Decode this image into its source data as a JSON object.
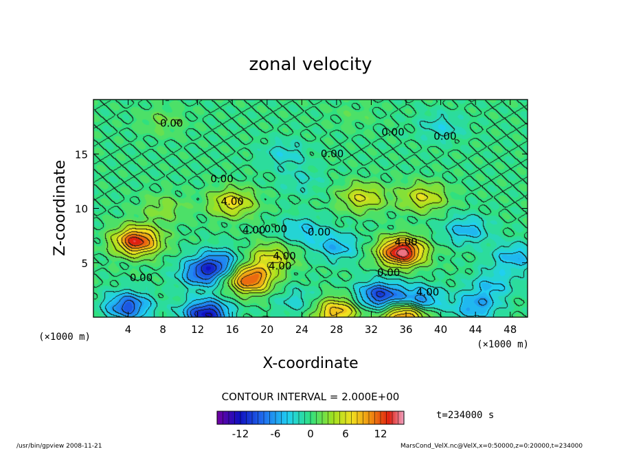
{
  "chart_data": {
    "type": "heatmap",
    "title": "zonal velocity",
    "xlabel": "X-coordinate",
    "ylabel": "Z-coordinate",
    "x_unit": "(×1000 m)",
    "y_unit": "(×1000 m)",
    "xlim": [
      0,
      50
    ],
    "ylim": [
      0,
      20
    ],
    "x_ticks": [
      4,
      8,
      12,
      16,
      20,
      24,
      28,
      32,
      36,
      40,
      44,
      48
    ],
    "y_ticks": [
      5,
      10,
      15
    ],
    "contour_interval": "CONTOUR INTERVAL = 2.000E+00",
    "time": "t=234000 s",
    "colorbar": {
      "range": [
        -16,
        16
      ],
      "ticks": [
        -12,
        -6,
        0,
        6,
        12
      ]
    },
    "contour_labels": [
      {
        "text": "0.00",
        "x": 9.0,
        "z": 17.5
      },
      {
        "text": "0.00",
        "x": 34.5,
        "z": 16.7
      },
      {
        "text": "0.00",
        "x": 40.5,
        "z": 16.3
      },
      {
        "text": "0.00",
        "x": 27.5,
        "z": 14.7
      },
      {
        "text": "0.00",
        "x": 14.8,
        "z": 12.4
      },
      {
        "text": "4.00",
        "x": 16.0,
        "z": 10.3
      },
      {
        "text": "4.00",
        "x": 18.5,
        "z": 7.7
      },
      {
        "text": "0.00",
        "x": 21.0,
        "z": 7.8
      },
      {
        "text": "0.00",
        "x": 26.0,
        "z": 7.5
      },
      {
        "text": "4.00",
        "x": 36.0,
        "z": 6.6
      },
      {
        "text": "4.00",
        "x": 22.0,
        "z": 5.3
      },
      {
        "text": "4.00",
        "x": 21.5,
        "z": 4.4
      },
      {
        "text": "0.00",
        "x": 5.5,
        "z": 3.3
      },
      {
        "text": "0.00",
        "x": 34.0,
        "z": 3.8
      },
      {
        "text": "4.00",
        "x": 38.5,
        "z": 2.0
      }
    ],
    "features": [
      {
        "x": 5.0,
        "z": 7.0,
        "u": 13
      },
      {
        "x": 35.5,
        "z": 6.0,
        "u": 15
      },
      {
        "x": 18.0,
        "z": 3.5,
        "u": 12
      },
      {
        "x": 20.5,
        "z": 5.5,
        "u": 6
      },
      {
        "x": 16.0,
        "z": 10.5,
        "u": 7
      },
      {
        "x": 31.0,
        "z": 11.0,
        "u": 6
      },
      {
        "x": 38.0,
        "z": 11.0,
        "u": 6
      },
      {
        "x": 14.5,
        "z": 5.0,
        "u": -7
      },
      {
        "x": 12.5,
        "z": 4.0,
        "u": -8
      },
      {
        "x": 33.0,
        "z": 2.0,
        "u": -10
      },
      {
        "x": 37.5,
        "z": 1.5,
        "u": -8
      },
      {
        "x": 4.0,
        "z": 1.0,
        "u": -9
      },
      {
        "x": 13.0,
        "z": 0.3,
        "u": -12
      },
      {
        "x": 24.0,
        "z": 8.0,
        "u": -4
      },
      {
        "x": 28.0,
        "z": 6.5,
        "u": -5
      },
      {
        "x": 43.0,
        "z": 8.0,
        "u": -5
      },
      {
        "x": 48.5,
        "z": 5.5,
        "u": -5
      },
      {
        "x": 46.0,
        "z": 3.0,
        "u": -4
      },
      {
        "x": 44.0,
        "z": 1.0,
        "u": -6
      },
      {
        "x": 23.5,
        "z": 1.5,
        "u": -3
      },
      {
        "x": 28.0,
        "z": 0.5,
        "u": 9
      },
      {
        "x": 36.0,
        "z": 0.2,
        "u": 12
      },
      {
        "x": 22.0,
        "z": 15.0,
        "u": -3
      },
      {
        "x": 40.0,
        "z": 17.5,
        "u": -3
      },
      {
        "x": 8.0,
        "z": 18.0,
        "u": 2
      },
      {
        "x": 30.0,
        "z": 18.5,
        "u": 1
      },
      {
        "x": 24.0,
        "z": 12.5,
        "u": -2
      },
      {
        "x": 8.0,
        "z": 10.0,
        "u": 3
      }
    ]
  },
  "footer": {
    "left": "/usr/bin/gpview  2008-11-21",
    "right": "MarsCond_VelX.nc@VelX,x=0:50000,z=0:20000,t=234000"
  }
}
